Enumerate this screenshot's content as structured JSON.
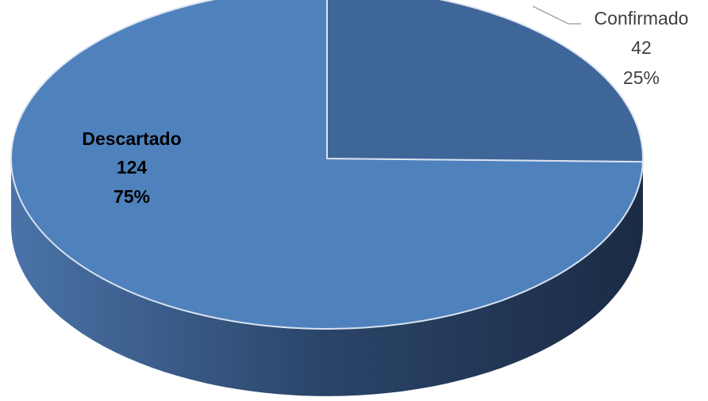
{
  "chart_data": {
    "type": "pie",
    "variant": "3d",
    "slices": [
      {
        "name": "Descartado",
        "value": 124,
        "percent": "75%",
        "color": "#4F81BD",
        "label_weight": "bold"
      },
      {
        "name": "Confirmado",
        "value": 42,
        "percent": "25%",
        "color": "#3E6699",
        "label_weight": "normal"
      }
    ],
    "side_color_light": "#4A73A8",
    "side_color_dark": "#1B2B45",
    "rim_color": "#D9E3F0",
    "leader_color": "#A6A6A6"
  }
}
